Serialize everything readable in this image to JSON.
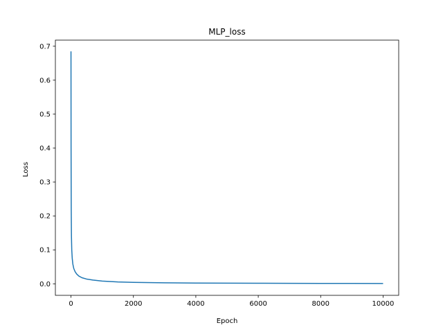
{
  "chart_data": {
    "type": "line",
    "title": "MLP_loss",
    "xlabel": "Epoch",
    "ylabel": "Loss",
    "xlim": [
      -500,
      10500
    ],
    "ylim": [
      -0.034,
      0.718
    ],
    "xticks": [
      0,
      2000,
      4000,
      6000,
      8000,
      10000
    ],
    "xtick_labels": [
      "0",
      "2000",
      "4000",
      "6000",
      "8000",
      "10000"
    ],
    "yticks": [
      0.0,
      0.1,
      0.2,
      0.3,
      0.4,
      0.5,
      0.6,
      0.7
    ],
    "ytick_labels": [
      "0.0",
      "0.1",
      "0.2",
      "0.3",
      "0.4",
      "0.5",
      "0.6",
      "0.7"
    ],
    "grid": false,
    "legend": "none",
    "series": [
      {
        "color": "#1f77b4",
        "x": [
          0,
          3,
          8,
          15,
          25,
          40,
          60,
          90,
          130,
          180,
          250,
          350,
          500,
          700,
          1000,
          1500,
          2000,
          3000,
          4000,
          5000,
          6000,
          7000,
          8000,
          9000,
          10000
        ],
        "y": [
          0.685,
          0.4,
          0.22,
          0.14,
          0.1,
          0.075,
          0.058,
          0.045,
          0.036,
          0.029,
          0.023,
          0.018,
          0.014,
          0.011,
          0.008,
          0.0055,
          0.0042,
          0.003,
          0.0023,
          0.0019,
          0.0016,
          0.0014,
          0.0012,
          0.0011,
          0.001
        ]
      }
    ]
  }
}
